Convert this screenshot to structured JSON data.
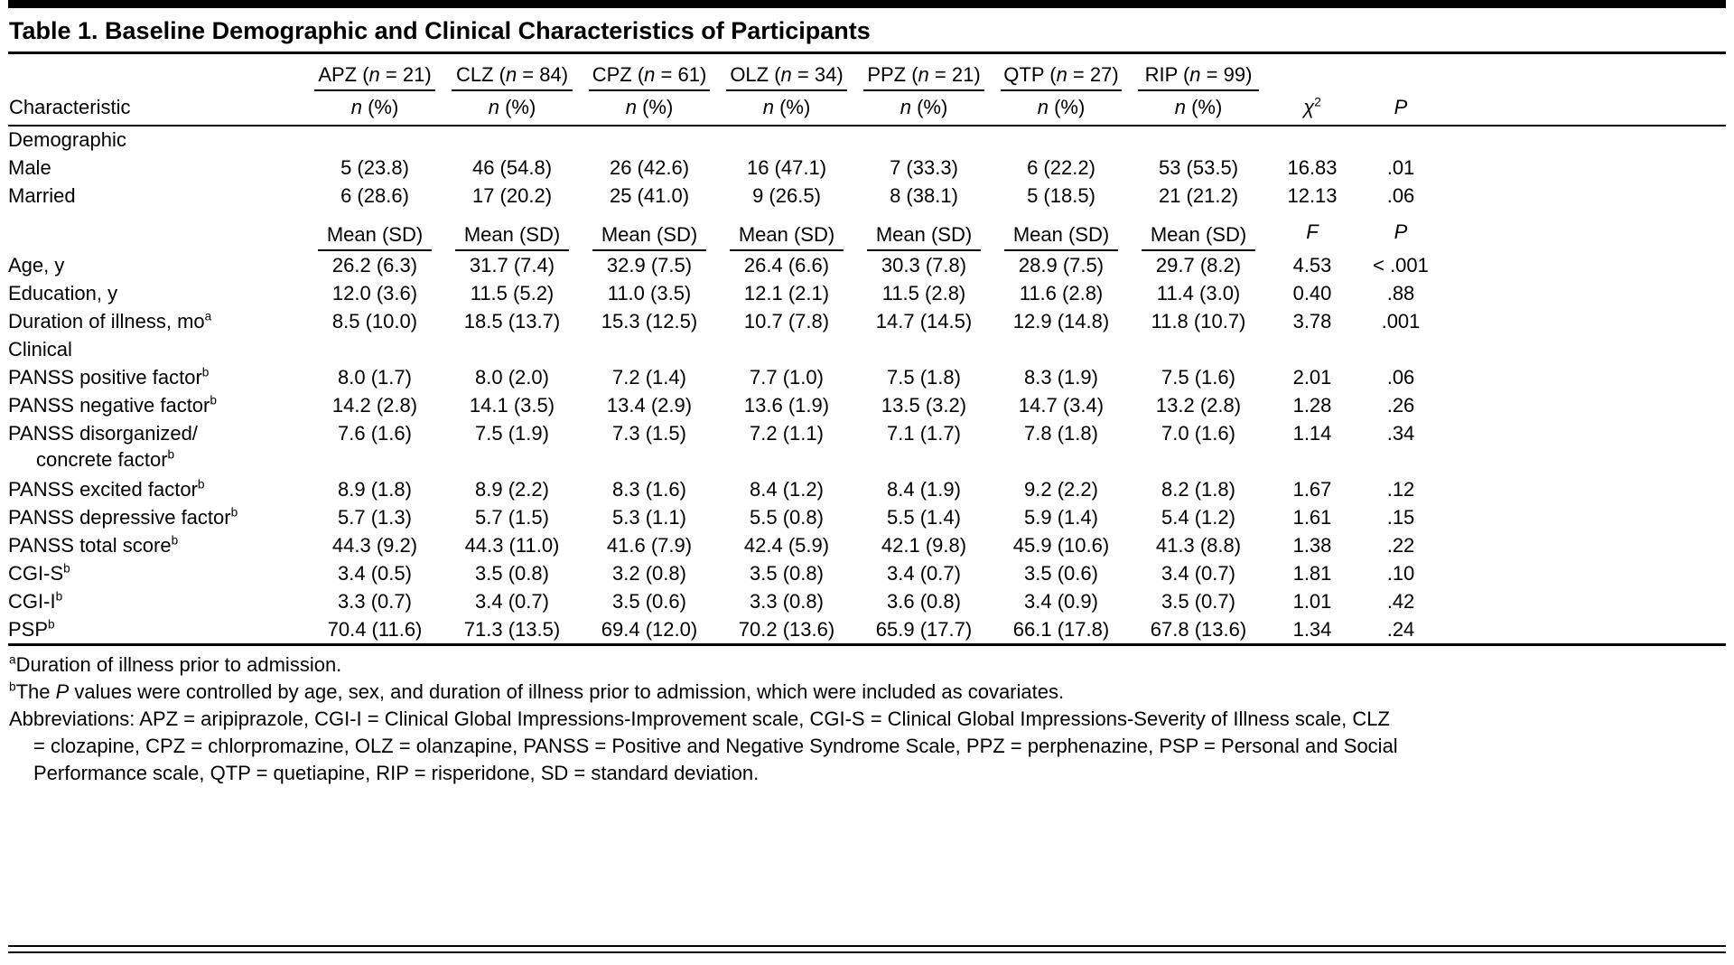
{
  "title": "Table 1. Baseline Demographic and Clinical Characteristics of Participants",
  "table": {
    "row_header": "Characteristic",
    "groups": [
      "APZ (n = 21)",
      "CLZ (n = 84)",
      "CPZ (n = 61)",
      "OLZ (n = 34)",
      "PPZ (n = 21)",
      "QTP (n = 27)",
      "RIP (n = 99)"
    ],
    "subheader_count": "n (%)",
    "stat_header": "χ",
    "stat_header_sup": "2",
    "p_header": "P",
    "rows": [
      {
        "type": "section",
        "label": "Demographic"
      },
      {
        "type": "data",
        "label": "Male",
        "sup": "",
        "values": [
          "5 (23.8)",
          "46 (54.8)",
          "26 (42.6)",
          "16 (47.1)",
          "7 (33.3)",
          "6 (22.2)",
          "53 (53.5)"
        ],
        "stat": "16.83",
        "p": ".01"
      },
      {
        "type": "data",
        "label": "Married",
        "sup": "",
        "values": [
          "6 (28.6)",
          "17 (20.2)",
          "25 (41.0)",
          "9 (26.5)",
          "8 (38.1)",
          "5 (18.5)",
          "21 (21.2)"
        ],
        "stat": "12.13",
        "p": ".06"
      },
      {
        "type": "spanner",
        "span_label": "Mean (SD)",
        "stat": "F",
        "p": "P"
      },
      {
        "type": "data",
        "label": "Age, y",
        "sup": "",
        "values": [
          "26.2 (6.3)",
          "31.7 (7.4)",
          "32.9 (7.5)",
          "26.4 (6.6)",
          "30.3 (7.8)",
          "28.9 (7.5)",
          "29.7 (8.2)"
        ],
        "stat": "4.53",
        "p": "< .001"
      },
      {
        "type": "data",
        "label": "Education, y",
        "sup": "",
        "values": [
          "12.0 (3.6)",
          "11.5 (5.2)",
          "11.0 (3.5)",
          "12.1 (2.1)",
          "11.5 (2.8)",
          "11.6 (2.8)",
          "11.4 (3.0)"
        ],
        "stat": "0.40",
        "p": ".88"
      },
      {
        "type": "data",
        "label": "Duration of illness, mo",
        "sup": "a",
        "values": [
          "8.5 (10.0)",
          "18.5 (13.7)",
          "15.3 (12.5)",
          "10.7 (7.8)",
          "14.7 (14.5)",
          "12.9 (14.8)",
          "11.8 (10.7)"
        ],
        "stat": "3.78",
        "p": ".001"
      },
      {
        "type": "section",
        "label": "Clinical"
      },
      {
        "type": "data",
        "label": "PANSS positive factor",
        "sup": "b",
        "values": [
          "8.0 (1.7)",
          "8.0 (2.0)",
          "7.2 (1.4)",
          "7.7 (1.0)",
          "7.5 (1.8)",
          "8.3 (1.9)",
          "7.5 (1.6)"
        ],
        "stat": "2.01",
        "p": ".06"
      },
      {
        "type": "data",
        "label": "PANSS negative factor",
        "sup": "b",
        "values": [
          "14.2 (2.8)",
          "14.1 (3.5)",
          "13.4 (2.9)",
          "13.6 (1.9)",
          "13.5 (3.2)",
          "14.7 (3.4)",
          "13.2 (2.8)"
        ],
        "stat": "1.28",
        "p": ".26"
      },
      {
        "type": "data",
        "label": "PANSS disorganized/",
        "sup": "",
        "label2": "concrete factor",
        "sup2": "b",
        "values": [
          "7.6 (1.6)",
          "7.5 (1.9)",
          "7.3 (1.5)",
          "7.2 (1.1)",
          "7.1 (1.7)",
          "7.8 (1.8)",
          "7.0 (1.6)"
        ],
        "stat": "1.14",
        "p": ".34"
      },
      {
        "type": "data",
        "label": "PANSS excited factor",
        "sup": "b",
        "values": [
          "8.9 (1.8)",
          "8.9 (2.2)",
          "8.3 (1.6)",
          "8.4 (1.2)",
          "8.4 (1.9)",
          "9.2 (2.2)",
          "8.2 (1.8)"
        ],
        "stat": "1.67",
        "p": ".12"
      },
      {
        "type": "data",
        "label": "PANSS depressive factor",
        "sup": "b",
        "values": [
          "5.7 (1.3)",
          "5.7 (1.5)",
          "5.3 (1.1)",
          "5.5 (0.8)",
          "5.5 (1.4)",
          "5.9 (1.4)",
          "5.4 (1.2)"
        ],
        "stat": "1.61",
        "p": ".15"
      },
      {
        "type": "data",
        "label": "PANSS total score",
        "sup": "b",
        "values": [
          "44.3 (9.2)",
          "44.3 (11.0)",
          "41.6 (7.9)",
          "42.4 (5.9)",
          "42.1 (9.8)",
          "45.9 (10.6)",
          "41.3 (8.8)"
        ],
        "stat": "1.38",
        "p": ".22"
      },
      {
        "type": "data",
        "label": "CGI-S",
        "sup": "b",
        "values": [
          "3.4 (0.5)",
          "3.5 (0.8)",
          "3.2 (0.8)",
          "3.5 (0.8)",
          "3.4 (0.7)",
          "3.5 (0.6)",
          "3.4 (0.7)"
        ],
        "stat": "1.81",
        "p": ".10"
      },
      {
        "type": "data",
        "label": "CGI-I",
        "sup": "b",
        "values": [
          "3.3 (0.7)",
          "3.4 (0.7)",
          "3.5 (0.6)",
          "3.3 (0.8)",
          "3.6 (0.8)",
          "3.4 (0.9)",
          "3.5 (0.7)"
        ],
        "stat": "1.01",
        "p": ".42"
      },
      {
        "type": "data",
        "label": "PSP",
        "sup": "b",
        "values": [
          "70.4 (11.6)",
          "71.3 (13.5)",
          "69.4 (12.0)",
          "70.2 (13.6)",
          "65.9 (17.7)",
          "66.1 (17.8)",
          "67.8 (13.6)"
        ],
        "stat": "1.34",
        "p": ".24"
      }
    ]
  },
  "footnotes": {
    "a": {
      "sup": "a",
      "text": "Duration of illness prior to admission."
    },
    "b": {
      "sup": "b",
      "pre": "The ",
      "italic": "P",
      "post": " values were controlled by age, sex, and duration of illness prior to admission, which were included as covariates."
    },
    "abbreviations": "Abbreviations: APZ = aripiprazole, CGI-I = Clinical Global Impressions-Improvement scale, CGI-S = Clinical Global Impressions-Severity of Illness scale, CLZ = clozapine, CPZ = chlorpromazine, OLZ = olanzapine, PANSS = Positive and Negative Syndrome Scale, PPZ = perphenazine, PSP = Personal and Social Performance scale, QTP = quetiapine, RIP = risperidone, SD = standard deviation."
  }
}
